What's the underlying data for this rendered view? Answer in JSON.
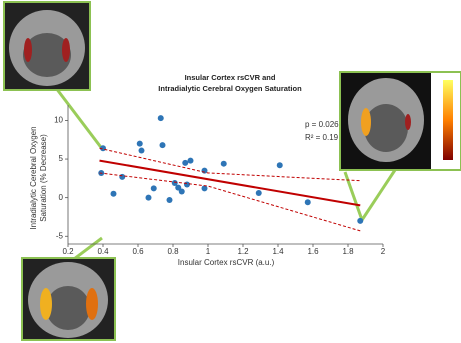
{
  "chart_data": {
    "type": "scatter",
    "title": [
      "Insular Cortex rsCVR and",
      "Intradialytic Cerebral Oxygen Saturation"
    ],
    "xlabel": "Insular Cortex rsCVR (a.u.)",
    "ylabel": [
      "Intradialytic Cerebral Oxygen",
      "Saturation (% Decrease)"
    ],
    "annotations": [
      "p = 0.026",
      "R² = 0.19"
    ],
    "xlim": [
      0.2,
      2
    ],
    "xticks": [
      0.2,
      0.4,
      0.6,
      0.8,
      1,
      1.2,
      1.4,
      1.6,
      1.8,
      2
    ],
    "ylim": [
      -6,
      12
    ],
    "yticks": [
      -5,
      0,
      5,
      10
    ],
    "series": [
      {
        "color": "#2e75b6",
        "x": [
          0.4,
          0.39,
          0.46,
          0.51,
          0.61,
          0.62,
          0.69,
          0.73,
          0.74,
          0.66,
          0.78,
          0.81,
          0.83,
          0.85,
          0.87,
          0.9,
          0.88,
          0.98,
          0.98,
          1.09,
          1.29,
          1.41,
          1.57,
          1.87
        ],
        "values": [
          6.4,
          3.2,
          0.5,
          2.7,
          7.0,
          6.1,
          1.2,
          10.3,
          6.8,
          0,
          -0.3,
          1.9,
          1.3,
          0.8,
          4.5,
          4.8,
          1.7,
          1.2,
          3.5,
          4.4,
          0.6,
          4.2,
          -0.6,
          -3.0
        ]
      }
    ],
    "fit": {
      "color": "#c00000",
      "x": [
        0.38,
        1.87
      ],
      "values": [
        4.8,
        -1.0
      ]
    },
    "band_upper": {
      "color": "#c00000",
      "x": [
        0.38,
        1.0,
        1.87
      ],
      "values": [
        6.4,
        3.2,
        2.2
      ]
    },
    "band_lower": {
      "color": "#c00000",
      "x": [
        0.38,
        1.0,
        1.87
      ],
      "values": [
        3.2,
        1.5,
        -4.3
      ]
    }
  }
}
